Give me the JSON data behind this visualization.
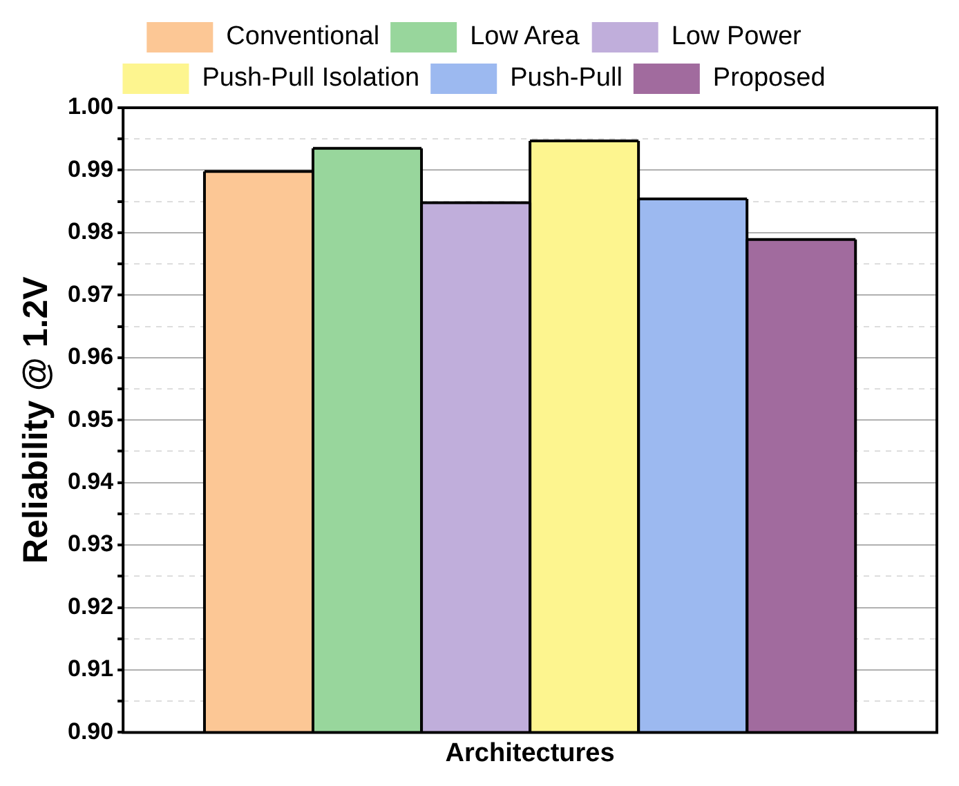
{
  "chart_data": {
    "type": "bar",
    "xlabel": "Architectures",
    "ylabel": "Reliability @ 1.2V",
    "categories": [
      null
    ],
    "series": [
      {
        "name": "Conventional",
        "color": "#fcc795",
        "values": [
          0.9898
        ]
      },
      {
        "name": "Low Area",
        "color": "#98d69c",
        "values": [
          0.9935
        ]
      },
      {
        "name": "Low Power",
        "color": "#c0aedb",
        "values": [
          0.9848
        ]
      },
      {
        "name": "Push-Pull Isolation",
        "color": "#fdf58f",
        "values": [
          0.9947
        ]
      },
      {
        "name": "Push-Pull",
        "color": "#9cb9f0",
        "values": [
          0.9854
        ]
      },
      {
        "name": "Proposed",
        "color": "#a16b9e",
        "values": [
          0.9789
        ]
      }
    ],
    "ylim": [
      0.9,
      1.0
    ],
    "yticks": [
      {
        "value": 0.9,
        "label": "0.90"
      },
      {
        "value": 0.905,
        "label": null
      },
      {
        "value": 0.91,
        "label": "0.91"
      },
      {
        "value": 0.915,
        "label": null
      },
      {
        "value": 0.92,
        "label": "0.92"
      },
      {
        "value": 0.925,
        "label": null
      },
      {
        "value": 0.93,
        "label": "0.93"
      },
      {
        "value": 0.935,
        "label": null
      },
      {
        "value": 0.94,
        "label": "0.94"
      },
      {
        "value": 0.945,
        "label": null
      },
      {
        "value": 0.95,
        "label": "0.95"
      },
      {
        "value": 0.955,
        "label": null
      },
      {
        "value": 0.96,
        "label": "0.96"
      },
      {
        "value": 0.965,
        "label": null
      },
      {
        "value": 0.97,
        "label": "0.97"
      },
      {
        "value": 0.975,
        "label": null
      },
      {
        "value": 0.98,
        "label": "0.98"
      },
      {
        "value": 0.985,
        "label": null
      },
      {
        "value": 0.99,
        "label": "0.99"
      },
      {
        "value": 0.995,
        "label": null
      },
      {
        "value": 1.0,
        "label": "1.00"
      }
    ],
    "grid": "y",
    "legend": "top",
    "tick_labels": "y"
  }
}
